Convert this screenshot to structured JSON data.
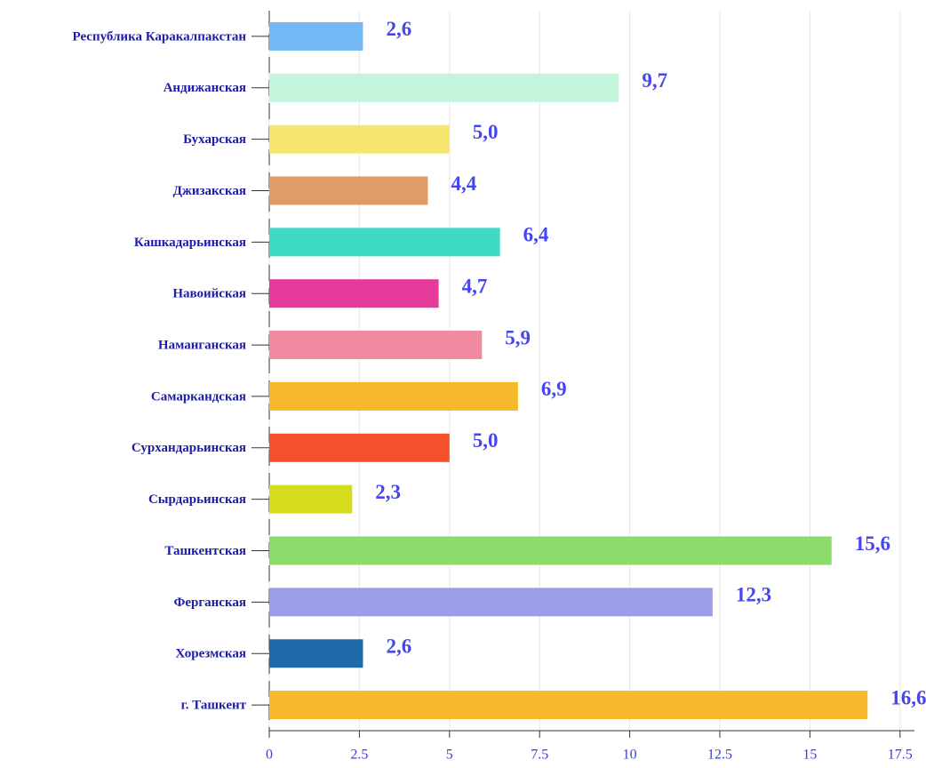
{
  "chart_data": {
    "type": "barh",
    "categories": [
      "Республика Каракалпакстан",
      "Андижанская",
      "Бухарская",
      "Джизакская",
      "Кашкадарьинская",
      "Навоийская",
      "Наманганская",
      "Самаркандская",
      "Сурхандарьинская",
      "Сырдарьинская",
      "Ташкентская",
      "Ферганская",
      "Хорезмская",
      "г. Ташкент"
    ],
    "values": [
      2.6,
      9.7,
      5.0,
      4.4,
      6.4,
      4.7,
      5.9,
      6.9,
      5.0,
      2.3,
      15.6,
      12.3,
      2.6,
      16.6
    ],
    "value_labels": [
      "2,6",
      "9,7",
      "5,0",
      "4,4",
      "6,4",
      "4,7",
      "5,9",
      "6,9",
      "5,0",
      "2,3",
      "15,6",
      "12,3",
      "2,6",
      "16,6"
    ],
    "colors": [
      "#74b9f5",
      "#c3f5dd",
      "#f5e76e",
      "#e09c66",
      "#3ddbc4",
      "#e63a9b",
      "#ef8aa1",
      "#f5b92b",
      "#f5502c",
      "#d6dd1e",
      "#8ddb6b",
      "#9b9de6",
      "#1f6aa8",
      "#f5b92b"
    ],
    "xlim": [
      0,
      17.9
    ],
    "xticks": [
      0,
      2.5,
      5,
      7.5,
      10,
      12.5,
      15,
      17.5
    ],
    "grid": true
  }
}
